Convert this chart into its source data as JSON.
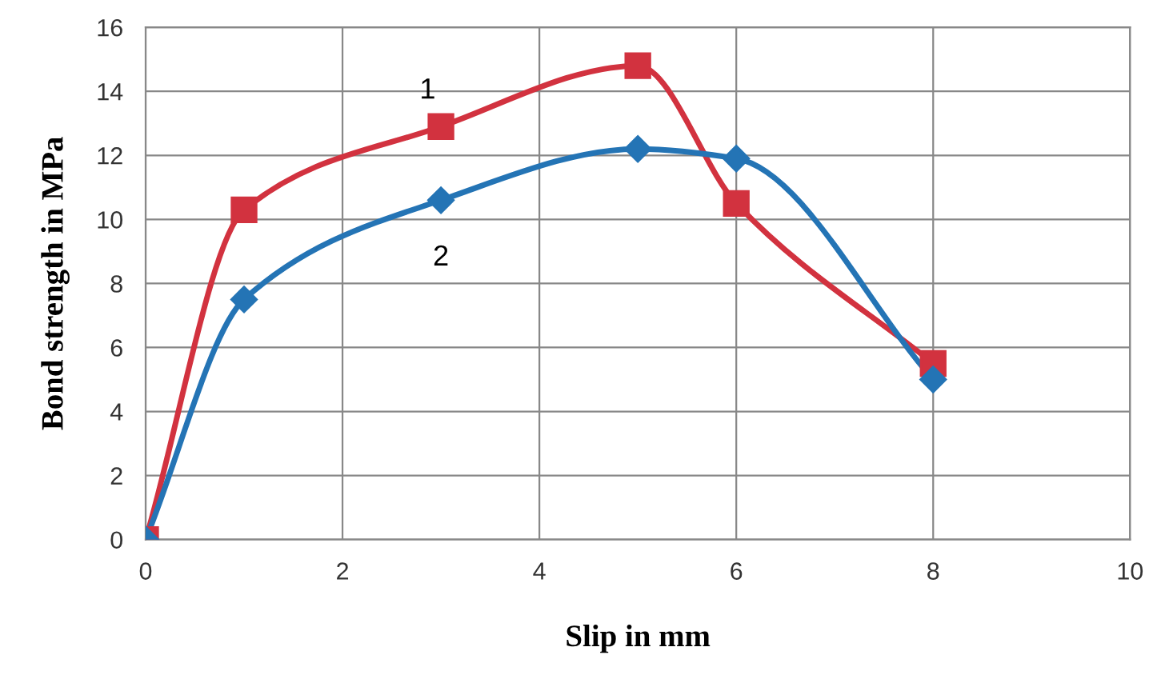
{
  "chart_data": {
    "type": "line",
    "xlabel": "Slip in mm",
    "ylabel": "Bond strength in MPa",
    "x": [
      0,
      1,
      3,
      5,
      6,
      8
    ],
    "series": [
      {
        "name": "1",
        "color": "#d2323f",
        "marker": "square",
        "values": [
          0,
          10.3,
          12.9,
          14.8,
          10.5,
          5.5
        ]
      },
      {
        "name": "2",
        "color": "#2474b5",
        "marker": "diamond",
        "values": [
          0,
          7.5,
          10.6,
          12.2,
          11.9,
          5.0
        ]
      }
    ],
    "xlim": [
      0,
      10
    ],
    "xticks": [
      0,
      2,
      4,
      6,
      8,
      10
    ],
    "ylim": [
      0,
      16
    ],
    "yticks": [
      0,
      2,
      4,
      6,
      8,
      10,
      12,
      14,
      16
    ],
    "grid": true,
    "line_style": "solid"
  }
}
